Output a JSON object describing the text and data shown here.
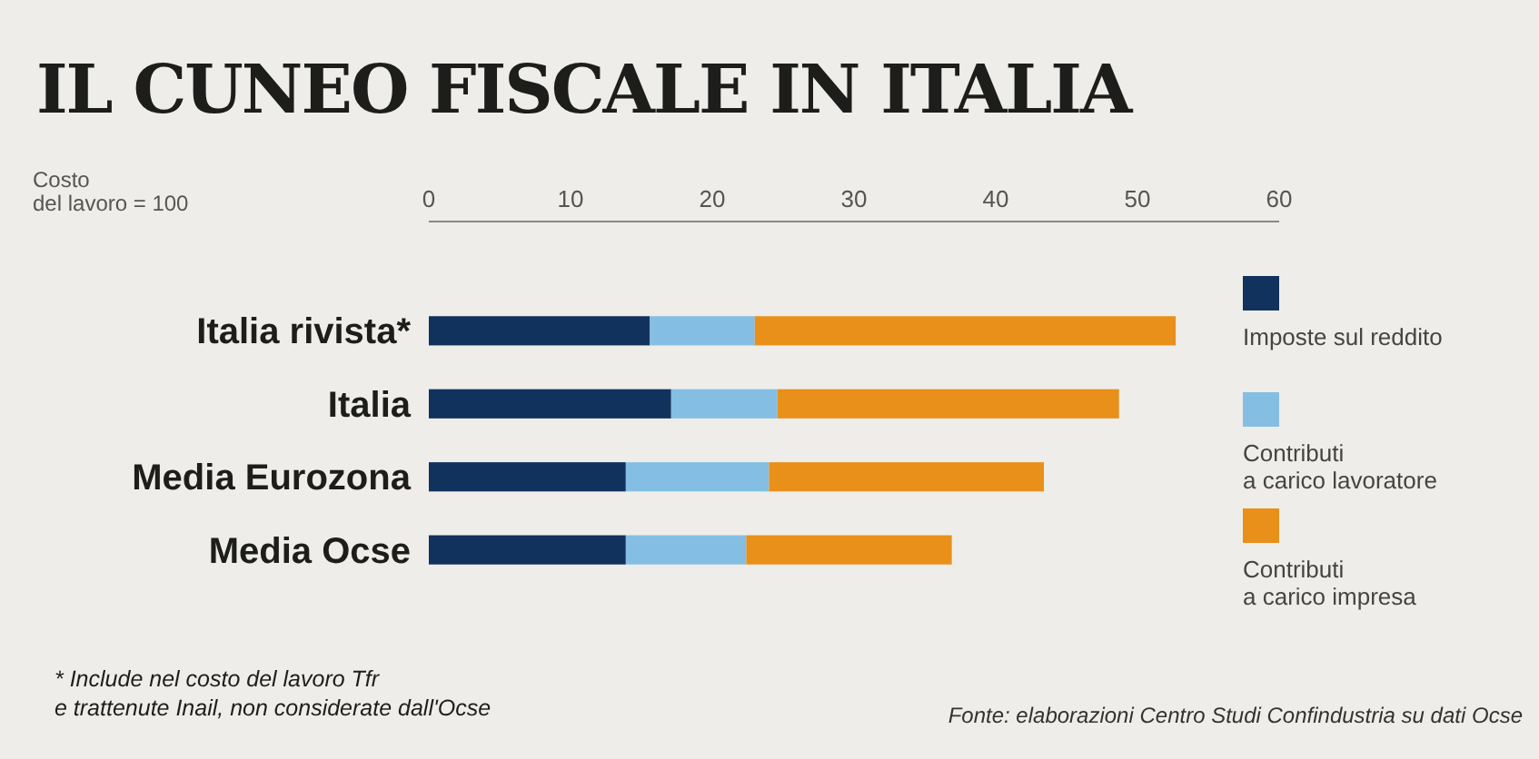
{
  "chart_data": {
    "type": "bar",
    "orientation": "horizontal",
    "stacked": true,
    "title": "IL CUNEO FISCALE IN ITALIA",
    "xlabel": "Costo del lavoro = 100",
    "categories": [
      "Italia rivista*",
      "Italia",
      "Media Eurozona",
      "Media Ocse"
    ],
    "series": [
      {
        "name": "Imposte sul reddito",
        "color": "#12325e",
        "values": [
          15.6,
          17.1,
          13.9,
          13.9
        ]
      },
      {
        "name": "Contributi a carico lavoratore",
        "color": "#84bfe3",
        "values": [
          7.4,
          7.5,
          10.1,
          8.5
        ]
      },
      {
        "name": "Contributi a carico impresa",
        "color": "#e8901a",
        "values": [
          29.7,
          24.1,
          19.4,
          14.5
        ]
      }
    ],
    "xlim": [
      0,
      60
    ],
    "xticks": [
      0,
      10,
      20,
      30,
      40,
      50,
      60
    ],
    "legend": "right",
    "grid": false,
    "annotations": [
      "* Include nel costo del lavoro Tfr e trattenute Inail, non considerate dall'Ocse",
      "Fonte: elaborazioni Centro Studi Confindustria su dati Ocse"
    ]
  }
}
